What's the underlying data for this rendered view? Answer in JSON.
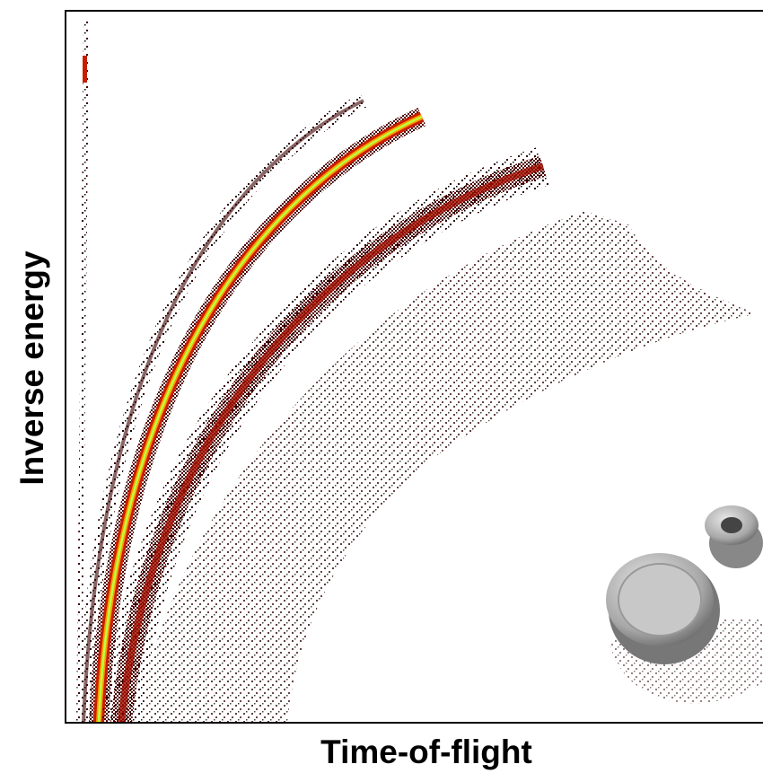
{
  "chart_data": {
    "type": "density",
    "x_label": "Time-of-flight",
    "y_label": "Inverse energy"
  }
}
